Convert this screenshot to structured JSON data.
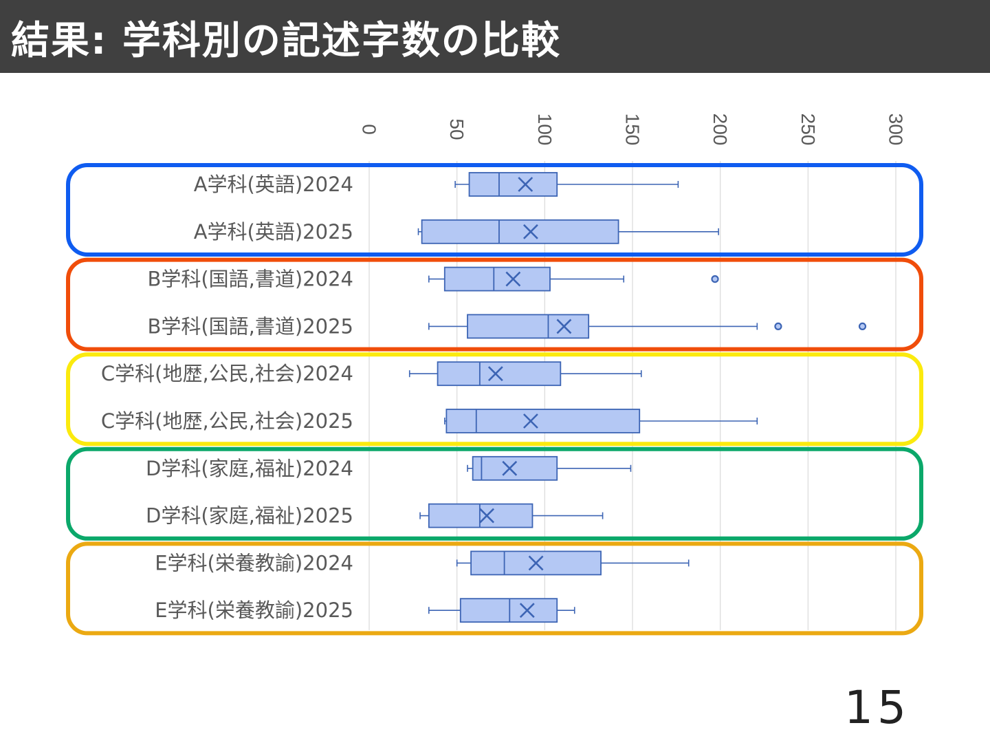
{
  "slide": {
    "title": "結果: 学科別の記述字数の比較",
    "page_number": "15"
  },
  "chart_data": {
    "type": "boxplot",
    "orientation": "horizontal",
    "value_axis": {
      "min": 0,
      "max": 300,
      "tick_labels": [
        "0",
        "50",
        "100",
        "150",
        "200",
        "250",
        "300"
      ],
      "tick_values": [
        0,
        50,
        100,
        150,
        200,
        250,
        300
      ],
      "tick_label_rotation": "90deg",
      "gridlines": true
    },
    "box_color": "#b4c8f4",
    "box_edge_color": "#3c64b4",
    "series": [
      {
        "label": "A学科(英語)2024",
        "group": "A",
        "whisker_low": 49,
        "q1": 57,
        "median": 74,
        "mean": 89,
        "q3": 107,
        "whisker_high": 176,
        "outliers": []
      },
      {
        "label": "A学科(英語)2025",
        "group": "A",
        "whisker_low": 28,
        "q1": 30,
        "median": 74,
        "mean": 92,
        "q3": 142,
        "whisker_high": 199,
        "outliers": []
      },
      {
        "label": "B学科(国語,書道)2024",
        "group": "B",
        "whisker_low": 34,
        "q1": 43,
        "median": 71,
        "mean": 82,
        "q3": 103,
        "whisker_high": 145,
        "outliers": [
          197
        ]
      },
      {
        "label": "B学科(国語,書道)2025",
        "group": "B",
        "whisker_low": 34,
        "q1": 56,
        "median": 102,
        "mean": 111,
        "q3": 125,
        "whisker_high": 221,
        "outliers": [
          233,
          281
        ]
      },
      {
        "label": "C学科(地歴,公民,社会)2024",
        "group": "C",
        "whisker_low": 23,
        "q1": 39,
        "median": 63,
        "mean": 72,
        "q3": 109,
        "whisker_high": 155,
        "outliers": []
      },
      {
        "label": "C学科(地歴,公民,社会)2025",
        "group": "C",
        "whisker_low": 43,
        "q1": 44,
        "median": 61,
        "mean": 92,
        "q3": 154,
        "whisker_high": 221,
        "outliers": []
      },
      {
        "label": "D学科(家庭,福祉)2024",
        "group": "D",
        "whisker_low": 56,
        "q1": 59,
        "median": 64,
        "mean": 80,
        "q3": 107,
        "whisker_high": 149,
        "outliers": []
      },
      {
        "label": "D学科(家庭,福祉)2025",
        "group": "D",
        "whisker_low": 29,
        "q1": 34,
        "median": 63,
        "mean": 67,
        "q3": 93,
        "whisker_high": 133,
        "outliers": []
      },
      {
        "label": "E学科(栄養教諭)2024",
        "group": "E",
        "whisker_low": 50,
        "q1": 58,
        "median": 77,
        "mean": 95,
        "q3": 132,
        "whisker_high": 182,
        "outliers": []
      },
      {
        "label": "E学科(栄養教諭)2025",
        "group": "E",
        "whisker_low": 34,
        "q1": 52,
        "median": 80,
        "mean": 90,
        "q3": 107,
        "whisker_high": 117,
        "outliers": []
      }
    ],
    "group_highlights": [
      {
        "group": "A",
        "color": "#0f5cf0"
      },
      {
        "group": "B",
        "color": "#f04d0a"
      },
      {
        "group": "C",
        "color": "#fbea0e"
      },
      {
        "group": "D",
        "color": "#0ba86a"
      },
      {
        "group": "E",
        "color": "#eba912"
      }
    ]
  }
}
